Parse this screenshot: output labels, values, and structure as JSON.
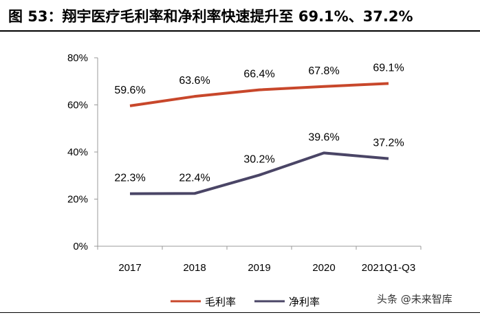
{
  "figure": {
    "title": "图 53：翔宇医疗毛利率和净利率快速提升至 69.1%、37.2%"
  },
  "chart_data": {
    "type": "line",
    "categories": [
      "2017",
      "2018",
      "2019",
      "2020",
      "2021Q1-Q3"
    ],
    "ylim": [
      0,
      80
    ],
    "yticks": [
      0,
      20,
      40,
      60,
      80
    ],
    "ytick_labels": [
      "0%",
      "20%",
      "40%",
      "60%",
      "80%"
    ],
    "grid": false,
    "legend_position": "bottom",
    "series": [
      {
        "name": "毛利率",
        "color": "#c8472b",
        "values": [
          59.6,
          63.6,
          66.4,
          67.8,
          69.1
        ],
        "labels": [
          "59.6%",
          "63.6%",
          "66.4%",
          "67.8%",
          "69.1%"
        ]
      },
      {
        "name": "净利率",
        "color": "#4a4566",
        "values": [
          22.3,
          22.4,
          30.2,
          39.6,
          37.2
        ],
        "labels": [
          "22.3%",
          "22.4%",
          "30.2%",
          "39.6%",
          "37.2%"
        ]
      }
    ]
  },
  "watermark": "头条 @未来智库"
}
